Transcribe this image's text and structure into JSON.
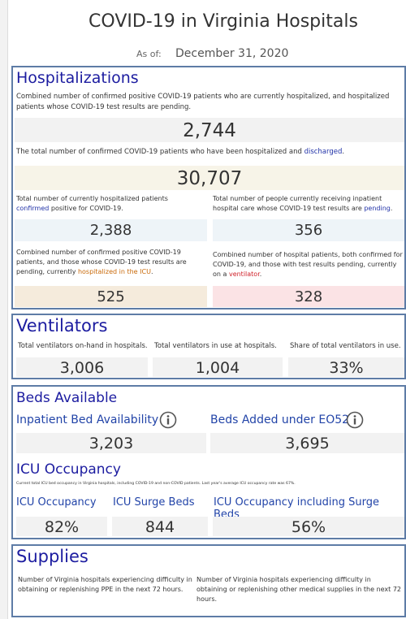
{
  "header": {
    "title": "COVID-19 in Virginia Hospitals",
    "as_of_label": "As of:",
    "as_of_date": "December 31, 2020"
  },
  "hospitalizations": {
    "heading": "Hospitalizations",
    "current_desc": "Combined number of confirmed positive COVID-19 patients who are currently hospitalized, and hospitalized patients whose COVID-19 test results are pending.",
    "current_value": "2,744",
    "total_desc": [
      "The total number of confirmed COVID-19 patients who have been hospitalized and ",
      "discharged",
      "."
    ],
    "total_value": "30,707",
    "confirmed_desc": [
      "Total number of currently hospitalized patients ",
      "confirmed",
      " positive for COVID-19."
    ],
    "confirmed_value": "2,388",
    "pending_desc": [
      "Total number of people currently receiving inpatient hospital care whose COVID-19 test results are ",
      "pending",
      "."
    ],
    "pending_value": "356",
    "icu_desc": [
      "Combined number of confirmed positive COVID-19 patients, and those whose COVID-19 test results are pending, currently ",
      "hospitalized in the ICU",
      "."
    ],
    "icu_value": "525",
    "vent_desc": [
      "Combined number of hospital patients, both confirmed for COVID-19, and those with test results pending, currently on a ",
      "ventilator",
      "."
    ],
    "vent_value": "328"
  },
  "ventilators": {
    "heading": "Ventilators",
    "items": [
      {
        "label": "Total ventilators on-hand in hospitals.",
        "value": "3,006"
      },
      {
        "label": "Total ventilators in use at hospitals.",
        "value": "1,004"
      },
      {
        "label": "Share of total ventilators in use.",
        "value": "33%"
      }
    ]
  },
  "beds": {
    "heading": "Beds Available",
    "items": [
      {
        "label": "Inpatient Bed Availability",
        "value": "3,203"
      },
      {
        "label": "Beds Added under EO52",
        "value": "3,695"
      }
    ],
    "icu_heading": "ICU Occupancy",
    "icu_note": "Current total ICU bed occupancy in Virginia hospitals, including COVID-19 and non-COVID patients. Last year's average ICU occupancy rate was 67%.",
    "icu_items": [
      {
        "label": "ICU Occupancy",
        "value": "82%"
      },
      {
        "label": "ICU Surge Beds",
        "value": "844"
      },
      {
        "label": "ICU Occupancy including Surge Beds",
        "value": "56%"
      }
    ]
  },
  "supplies": {
    "heading": "Supplies",
    "items": [
      "Number of Virginia hospitals experiencing difficulty in obtaining or replenishing PPE in the next 72 hours.",
      "Number of Virginia hospitals experiencing difficulty in obtaining or replenishing other medical supplies in the next 72 hours."
    ]
  }
}
